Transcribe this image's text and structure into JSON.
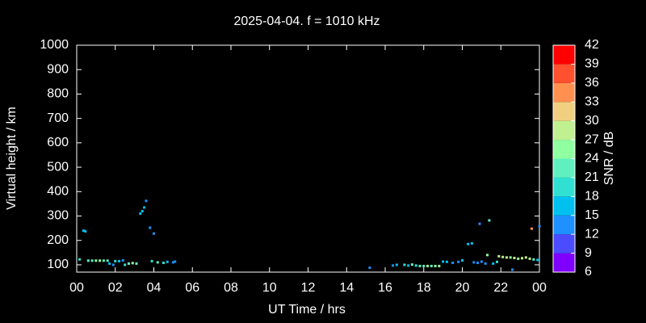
{
  "chart_data": {
    "type": "scatter",
    "title": "2025-04-04. f = 1010 kHz",
    "x_label": "UT Time / hrs",
    "y_label": "Virtual height / km",
    "xlim": [
      0,
      24
    ],
    "xticks": [
      {
        "value": 0,
        "label": "00"
      },
      {
        "value": 2,
        "label": "02"
      },
      {
        "value": 4,
        "label": "04"
      },
      {
        "value": 6,
        "label": "06"
      },
      {
        "value": 8,
        "label": "08"
      },
      10,
      12,
      14,
      16,
      18,
      20,
      22,
      {
        "value": 24,
        "label": "00"
      }
    ],
    "ylim": [
      70,
      1000
    ],
    "yticks": [
      100,
      200,
      300,
      400,
      500,
      600,
      700,
      800,
      900,
      1000
    ],
    "colorbar": {
      "label": "SNR / dB",
      "ticks": [
        6,
        9,
        12,
        15,
        18,
        21,
        24,
        27,
        30,
        33,
        36,
        39,
        42
      ],
      "colors": [
        "#8000ff",
        "#4b4bff",
        "#1e90ff",
        "#00c0f0",
        "#30e0d0",
        "#60f0c0",
        "#90ffa0",
        "#c0f090",
        "#f0d080",
        "#ff9050",
        "#ff5030",
        "#ff0000"
      ]
    },
    "x": [
      0.15,
      0.35,
      0.45,
      0.6,
      0.8,
      1.0,
      1.2,
      1.4,
      1.6,
      1.7,
      1.9,
      2.0,
      2.2,
      2.4,
      2.5,
      2.7,
      2.9,
      3.1,
      3.3,
      3.4,
      3.5,
      3.6,
      3.8,
      4.0,
      3.9,
      4.2,
      4.5,
      4.7,
      5.0,
      5.1,
      15.2,
      16.4,
      16.6,
      17.0,
      17.2,
      17.4,
      17.6,
      17.8,
      18.0,
      18.2,
      18.4,
      18.6,
      18.8,
      19.0,
      19.2,
      19.5,
      19.8,
      20.0,
      20.3,
      20.5,
      20.6,
      20.8,
      20.9,
      21.0,
      21.2,
      21.3,
      21.4,
      21.6,
      21.8,
      21.9,
      22.1,
      22.3,
      22.5,
      22.7,
      22.9,
      23.1,
      23.3,
      23.5,
      23.6,
      23.7,
      23.9,
      24.0,
      22.6
    ],
    "values": [
      122,
      240,
      237,
      117,
      117,
      117,
      117,
      117,
      117,
      105,
      100,
      115,
      115,
      118,
      100,
      105,
      107,
      105,
      310,
      320,
      335,
      362,
      252,
      228,
      115,
      110,
      108,
      112,
      110,
      113,
      88,
      97,
      100,
      100,
      97,
      101,
      97,
      95,
      95,
      95,
      95,
      95,
      95,
      113,
      112,
      108,
      112,
      118,
      185,
      188,
      110,
      108,
      268,
      113,
      105,
      140,
      282,
      105,
      112,
      135,
      132,
      130,
      130,
      128,
      125,
      127,
      130,
      125,
      248,
      122,
      120,
      258,
      80
    ],
    "snr": [
      18,
      15,
      15,
      21,
      21,
      24,
      24,
      21,
      21,
      15,
      12,
      18,
      15,
      12,
      18,
      21,
      24,
      21,
      15,
      15,
      15,
      12,
      12,
      12,
      18,
      21,
      18,
      15,
      12,
      12,
      12,
      12,
      15,
      18,
      15,
      21,
      18,
      21,
      21,
      24,
      21,
      24,
      24,
      15,
      15,
      12,
      12,
      15,
      15,
      15,
      12,
      12,
      12,
      12,
      12,
      24,
      21,
      15,
      18,
      27,
      27,
      27,
      24,
      27,
      24,
      27,
      27,
      27,
      33,
      21,
      15,
      12,
      12
    ]
  }
}
